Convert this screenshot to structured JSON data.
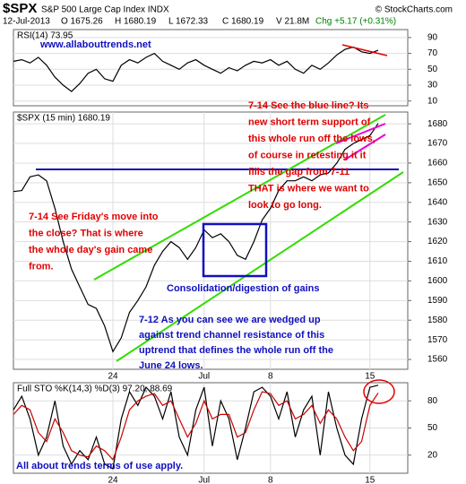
{
  "header": {
    "symbol": "$SPX",
    "name": "S&P 500 Large Cap Index INDX",
    "source": "© StockCharts.com",
    "date": "12-Jul-2013",
    "open": "O 1675.26",
    "high": "H 1680.19",
    "low": "L 1672.33",
    "close": "C 1680.19",
    "volume": "V 21.8M",
    "change": "Chg +5.17 (+0.31%)"
  },
  "chart_data": [
    {
      "type": "line",
      "title": "RSI(14) 73.95",
      "ylim": [
        4,
        100
      ],
      "yticks": [
        10,
        30,
        50,
        70,
        90
      ],
      "grid": true,
      "series": [
        {
          "name": "RSI(14)",
          "color": "#000000",
          "values": [
            60,
            62,
            58,
            65,
            55,
            40,
            30,
            22,
            32,
            45,
            50,
            38,
            35,
            55,
            62,
            58,
            65,
            70,
            60,
            55,
            50,
            58,
            62,
            55,
            50,
            45,
            52,
            48,
            55,
            60,
            58,
            62,
            55,
            60,
            50,
            45,
            55,
            50,
            58,
            68,
            75,
            78,
            72,
            70,
            73.95
          ]
        }
      ]
    },
    {
      "type": "line",
      "title": "$SPX (15 min) 1680.19",
      "ylim": [
        1555,
        1686
      ],
      "yticks": [
        1560,
        1570,
        1580,
        1590,
        1600,
        1610,
        1620,
        1630,
        1640,
        1650,
        1660,
        1670,
        1680
      ],
      "grid": true,
      "categories": [
        null,
        null,
        null,
        null,
        null,
        null,
        null,
        null,
        null,
        null,
        null,
        null,
        "24",
        null,
        null,
        null,
        null,
        null,
        null,
        null,
        null,
        null,
        null,
        "Jul",
        null,
        null,
        null,
        null,
        null,
        null,
        null,
        "8",
        null,
        null,
        null,
        null,
        null,
        null,
        null,
        null,
        null,
        null,
        null,
        "15",
        null
      ],
      "series": [
        {
          "name": "$SPX",
          "color": "#000000",
          "values": [
            1645.5,
            1646,
            1653,
            1654,
            1651,
            1637,
            1620,
            1606,
            1597,
            1588,
            1586,
            1577,
            1564,
            1571,
            1584,
            1590,
            1597,
            1608,
            1615,
            1620,
            1617,
            1611,
            1617,
            1626,
            1622,
            1624,
            1620,
            1613,
            1611,
            1620,
            1631,
            1637,
            1646,
            1651,
            1651,
            1653,
            1651,
            1654,
            1655,
            1660,
            1667,
            1670,
            1672,
            1674,
            1680.19
          ]
        }
      ]
    },
    {
      "type": "line",
      "title": "Full STO %K(14,3) %D(3) 97.20, 88.69",
      "ylim": [
        0,
        100
      ],
      "yticks": [
        20,
        50,
        80
      ],
      "grid": true,
      "categories": [
        null,
        null,
        null,
        null,
        null,
        null,
        null,
        null,
        null,
        null,
        null,
        null,
        "24",
        null,
        null,
        null,
        null,
        null,
        null,
        null,
        null,
        null,
        null,
        "Jul",
        null,
        null,
        null,
        null,
        null,
        null,
        null,
        "8",
        null,
        null,
        null,
        null,
        null,
        null,
        null,
        null,
        null,
        null,
        null,
        "15",
        null
      ],
      "series": [
        {
          "name": "%K",
          "color": "#000000",
          "values": [
            70,
            85,
            60,
            20,
            40,
            80,
            30,
            10,
            25,
            15,
            40,
            10,
            5,
            60,
            90,
            75,
            95,
            85,
            60,
            90,
            40,
            20,
            70,
            95,
            30,
            80,
            60,
            15,
            50,
            90,
            95,
            85,
            60,
            90,
            40,
            70,
            85,
            20,
            90,
            50,
            20,
            10,
            60,
            95,
            97.2
          ]
        },
        {
          "name": "%D",
          "color": "#cc0000",
          "values": [
            65,
            75,
            70,
            45,
            35,
            60,
            45,
            25,
            20,
            18,
            30,
            25,
            15,
            40,
            70,
            80,
            85,
            88,
            75,
            80,
            60,
            40,
            55,
            80,
            60,
            65,
            65,
            40,
            45,
            70,
            90,
            88,
            75,
            80,
            60,
            65,
            75,
            55,
            70,
            60,
            40,
            25,
            35,
            75,
            88.69
          ]
        }
      ]
    }
  ],
  "annotations": [
    {
      "color": "#e00000",
      "lines": [
        "7-14 See the blue line? Its",
        "new short term support of",
        "this whole run off the lows,",
        "of course in retesting it it",
        "fills the gap from 7-11",
        "THAT is where we want to",
        "look to go long."
      ]
    },
    {
      "color": "#e00000",
      "lines": [
        "7-14 See Friday's move into",
        "the close? That is where",
        "the whole day's gain came",
        "from."
      ]
    },
    {
      "color": "#1010c0",
      "lines": [
        "Consolidation/digestion of gains"
      ]
    },
    {
      "color": "#1010c0",
      "lines": [
        "7-12 As you can see we are wedged up",
        "against trend channel resistance of this",
        "uptrend that defines the whole run off the",
        "June 24 lows."
      ]
    },
    {
      "color": "#1010c0",
      "lines": [
        "www.allabouttrends.net"
      ]
    },
    {
      "color": "#1010c0",
      "lines": [
        "All about trends terms of use apply."
      ]
    }
  ]
}
